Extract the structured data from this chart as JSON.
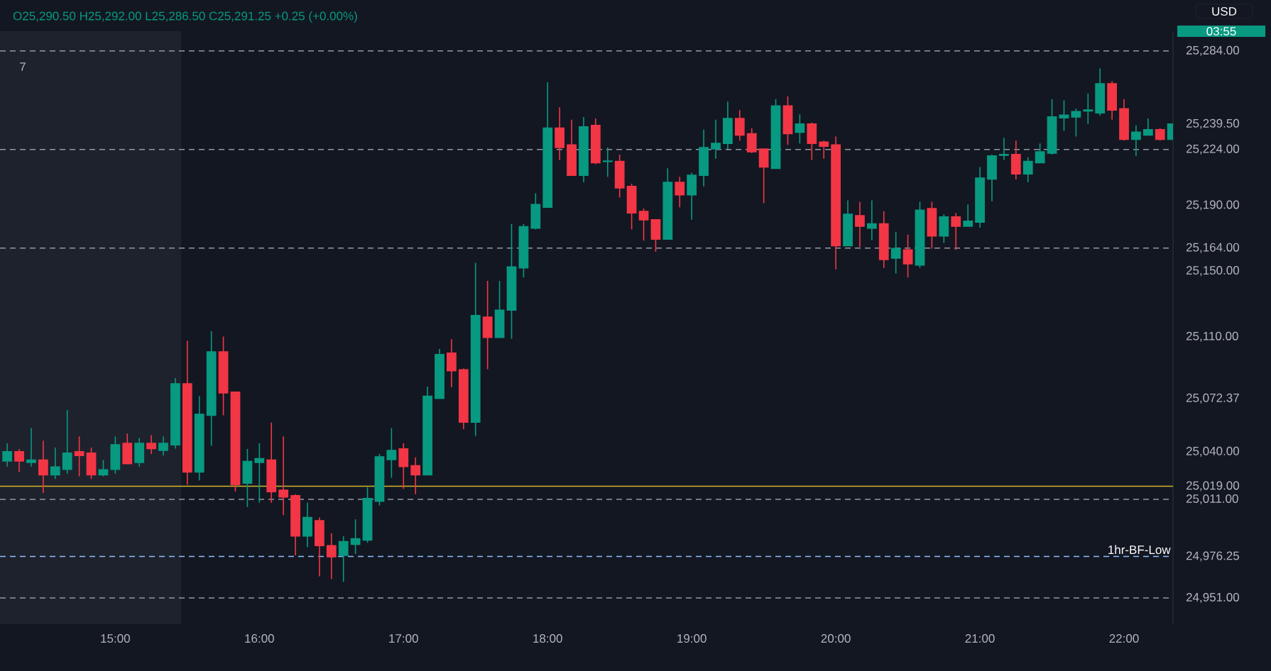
{
  "chart_data": {
    "type": "candlestick",
    "title": "O25,290.50 H25,292.00 L25,286.50 C25,291.25 +0.25 (+0.00%)",
    "annotations": [
      "7",
      "USD",
      "03:55"
    ],
    "x": [
      14.25,
      14.3333,
      14.4167,
      14.5,
      14.5833,
      14.6667,
      14.75,
      14.8333,
      14.9167,
      15,
      15.0833,
      15.1667,
      15.25,
      15.3333,
      15.4167,
      15.5,
      15.5833,
      15.6667,
      15.75,
      15.8333,
      15.9167,
      16,
      16.0833,
      16.1667,
      16.25,
      16.3333,
      16.4167,
      16.5,
      16.5833,
      16.6667,
      16.75,
      16.8333,
      16.9167,
      17,
      17.0833,
      17.1667,
      17.25,
      17.3333,
      17.4167,
      17.5,
      17.5833,
      17.6667,
      17.75,
      17.8333,
      17.9167,
      18,
      18.0833,
      18.1667,
      18.25,
      18.3333,
      18.4167,
      18.5,
      18.5833,
      18.6667,
      18.75,
      18.8333,
      18.9167,
      19,
      19.0833,
      19.1667,
      19.25,
      19.3333,
      19.4167,
      19.5,
      19.5833,
      19.6667,
      19.75,
      19.8333,
      19.9167,
      20,
      20.0833,
      20.1667,
      20.25,
      20.3333,
      20.4167,
      20.5,
      20.5833,
      20.6667,
      20.75,
      20.8333,
      20.9167,
      21,
      21.0833,
      21.1667,
      21.25,
      21.3333,
      21.4167,
      21.5,
      21.5833,
      21.6667,
      21.75,
      21.8333,
      21.9167,
      22,
      22.0833,
      22.1667,
      22.25,
      22.3333
    ],
    "ohlc": [
      [
        25034.3,
        25045.1,
        25031.0,
        25040.0
      ],
      [
        25040.0,
        25041.7,
        25027.6,
        25034.3
      ],
      [
        25033.5,
        25054.4,
        25031.0,
        25034.9
      ],
      [
        25034.9,
        25046.7,
        25014.9,
        25025.9
      ],
      [
        25025.9,
        25042.5,
        25023.4,
        25030.7
      ],
      [
        25029.3,
        25065.3,
        25026.7,
        25039.1
      ],
      [
        25040.0,
        25049.3,
        25025.0,
        25037.7
      ],
      [
        25039.1,
        25042.5,
        25023.4,
        25025.9
      ],
      [
        25025.9,
        25034.9,
        25025.0,
        25029.0
      ],
      [
        25029.3,
        25049.3,
        25026.7,
        25044.2
      ],
      [
        25045.1,
        25051.0,
        25032.7,
        25032.7
      ],
      [
        25033.5,
        25048.4,
        25031.0,
        25045.1
      ],
      [
        25045.1,
        25050.1,
        25038.6,
        25041.9
      ],
      [
        25040.8,
        25049.3,
        25037.7,
        25045.1
      ],
      [
        25044.2,
        25084.8,
        25041.9,
        25081.4
      ],
      [
        25081.4,
        25107.6,
        25020.0,
        25027.6
      ],
      [
        25027.6,
        25073.8,
        25022.5,
        25062.8
      ],
      [
        25062.2,
        25113.5,
        25043.6,
        25100.8
      ],
      [
        25100.8,
        25110.1,
        25062.2,
        25075.8
      ],
      [
        25076.3,
        25076.3,
        25015.7,
        25020.0
      ],
      [
        25020.8,
        25041.7,
        25006.4,
        25034.1
      ],
      [
        25033.5,
        25045.1,
        25009.0,
        25035.8
      ],
      [
        25034.9,
        25057.7,
        25009.0,
        25015.7
      ],
      [
        25016.6,
        25049.3,
        25001.4,
        25012.4
      ],
      [
        25013.2,
        25014.1,
        24976.9,
        24988.7
      ],
      [
        24988.7,
        25009.0,
        24981.9,
        25000.0
      ],
      [
        24998.0,
        25000.0,
        24964.2,
        24982.8
      ],
      [
        24982.8,
        24990.4,
        24962.5,
        24976.0
      ],
      [
        24976.9,
        24988.7,
        24960.8,
        24985.3
      ],
      [
        24983.6,
        24998.8,
        24977.7,
        24987.0
      ],
      [
        24986.2,
        25018.3,
        24984.5,
        25011.5
      ],
      [
        25009.8,
        25038.6,
        25007.3,
        25036.9
      ],
      [
        25035.2,
        25054.4,
        25024.2,
        25040.8
      ],
      [
        25041.7,
        25045.1,
        25017.4,
        25031.0
      ],
      [
        25031.5,
        25036.6,
        25014.1,
        25025.9
      ],
      [
        25025.9,
        25079.7,
        25025.9,
        25073.8
      ],
      [
        25072.4,
        25102.6,
        25072.4,
        25099.2
      ],
      [
        25100.0,
        25108.5,
        25079.2,
        25089.3
      ],
      [
        25089.9,
        25090.7,
        25053.8,
        25058.0
      ],
      [
        25058.0,
        25155.0,
        25049.6,
        25122.9
      ],
      [
        25122.0,
        25144.0,
        25090.2,
        25109.6
      ],
      [
        25109.6,
        25144.0,
        25109.6,
        25126.2
      ],
      [
        25126.2,
        25178.7,
        25108.8,
        25152.5
      ],
      [
        25151.9,
        25178.7,
        25146.0,
        25177.0
      ],
      [
        25176.1,
        25197.3,
        25175.3,
        25190.5
      ],
      [
        25188.8,
        25264.9,
        25188.8,
        25237.0
      ],
      [
        25237.0,
        25249.7,
        25217.6,
        25225.2
      ],
      [
        25226.8,
        25242.1,
        25208.3,
        25208.3
      ],
      [
        25208.3,
        25243.8,
        25204.0,
        25237.8
      ],
      [
        25238.7,
        25242.9,
        25215.0,
        25215.9
      ],
      [
        25216.7,
        25225.2,
        25207.4,
        25216.9
      ],
      [
        25216.7,
        25220.9,
        25194.7,
        25200.6
      ],
      [
        25201.5,
        25203.2,
        25175.3,
        25185.4
      ],
      [
        25186.3,
        25188.0,
        25168.5,
        25181.2
      ],
      [
        25181.2,
        25181.2,
        25161.7,
        25169.4
      ],
      [
        25169.4,
        25212.5,
        25169.4,
        25204.0
      ],
      [
        25204.0,
        25207.4,
        25188.8,
        25196.4
      ],
      [
        25196.4,
        25209.9,
        25181.2,
        25208.3
      ],
      [
        25208.3,
        25236.1,
        25201.5,
        25225.2
      ],
      [
        25224.3,
        25242.1,
        25218.4,
        25227.7
      ],
      [
        25227.7,
        25253.1,
        25224.3,
        25242.9
      ],
      [
        25242.9,
        25248.0,
        25229.4,
        25232.8
      ],
      [
        25233.6,
        25237.0,
        25221.8,
        25222.6
      ],
      [
        25224.3,
        25224.3,
        25191.3,
        25213.3
      ],
      [
        25212.5,
        25254.7,
        25212.5,
        25250.5
      ],
      [
        25250.5,
        25256.4,
        25226.8,
        25233.6
      ],
      [
        25234.5,
        25245.4,
        25227.7,
        25239.5
      ],
      [
        25239.5,
        25240.4,
        25217.6,
        25227.7
      ],
      [
        25228.5,
        25229.4,
        25218.4,
        25226.0
      ],
      [
        25226.8,
        25231.9,
        25151.0,
        25165.4
      ],
      [
        25165.4,
        25193.0,
        25165.4,
        25184.6
      ],
      [
        25183.7,
        25192.2,
        25164.6,
        25177.3
      ],
      [
        25176.1,
        25193.0,
        25168.8,
        25178.7
      ],
      [
        25178.7,
        25186.3,
        25151.9,
        25157.0
      ],
      [
        25157.8,
        25173.9,
        25148.5,
        25163.7
      ],
      [
        25162.9,
        25172.2,
        25146.0,
        25154.4
      ],
      [
        25153.6,
        25192.2,
        25151.9,
        25187.1
      ],
      [
        25188.0,
        25192.2,
        25163.7,
        25171.3
      ],
      [
        25171.3,
        25184.6,
        25167.1,
        25182.9
      ],
      [
        25182.9,
        25185.4,
        25162.9,
        25177.3
      ],
      [
        25177.3,
        25190.5,
        25177.3,
        25180.4
      ],
      [
        25179.8,
        25213.3,
        25176.4,
        25206.6
      ],
      [
        25206.0,
        25220.9,
        25192.5,
        25220.1
      ],
      [
        25220.4,
        25231.1,
        25217.6,
        25220.9
      ],
      [
        25220.9,
        25229.4,
        25205.7,
        25209.1
      ],
      [
        25209.1,
        25219.2,
        25204.0,
        25216.7
      ],
      [
        25215.9,
        25227.7,
        25215.9,
        25222.6
      ],
      [
        25221.8,
        25254.7,
        25220.9,
        25243.8
      ],
      [
        25243.2,
        25253.9,
        25235.3,
        25244.9
      ],
      [
        25243.8,
        25248.8,
        25231.9,
        25247.1
      ],
      [
        25247.4,
        25258.1,
        25239.5,
        25248.0
      ],
      [
        25246.3,
        25273.3,
        25244.6,
        25264.0
      ],
      [
        25264.0,
        25265.7,
        25242.1,
        25248.0
      ],
      [
        25248.8,
        25254.7,
        25229.4,
        25230.2
      ],
      [
        25230.2,
        25238.7,
        25220.1,
        25234.5
      ],
      [
        25232.8,
        25242.9,
        25232.8,
        25236.1
      ],
      [
        25236.1,
        25237.0,
        25229.4,
        25230.2
      ],
      [
        25230.2,
        25239.5,
        25230.2,
        25239.5
      ]
    ],
    "colors": [
      "#089981",
      "#f23645",
      "#089981",
      "#f23645",
      "#089981",
      "#089981",
      "#f23645",
      "#f23645",
      "#089981",
      "#089981",
      "#f23645",
      "#089981",
      "#f23645",
      "#089981",
      "#089981",
      "#f23645",
      "#089981",
      "#089981",
      "#f23645",
      "#f23645",
      "#089981",
      "#089981",
      "#f23645",
      "#f23645",
      "#f23645",
      "#089981",
      "#f23645",
      "#f23645",
      "#089981",
      "#089981",
      "#089981",
      "#089981",
      "#089981",
      "#f23645",
      "#f23645",
      "#089981",
      "#089981",
      "#f23645",
      "#f23645",
      "#089981",
      "#f23645",
      "#089981",
      "#089981",
      "#089981",
      "#089981",
      "#089981",
      "#f23645",
      "#f23645",
      "#089981",
      "#f23645",
      "#089981",
      "#f23645",
      "#f23645",
      "#f23645",
      "#f23645",
      "#089981",
      "#f23645",
      "#089981",
      "#089981",
      "#089981",
      "#089981",
      "#f23645",
      "#f23645",
      "#f23645",
      "#089981",
      "#f23645",
      "#089981",
      "#f23645",
      "#f23645",
      "#f23645",
      "#089981",
      "#f23645",
      "#089981",
      "#f23645",
      "#089981",
      "#f23645",
      "#089981",
      "#f23645",
      "#089981",
      "#f23645",
      "#089981",
      "#089981",
      "#089981",
      "#089981",
      "#f23645",
      "#089981",
      "#089981",
      "#089981",
      "#089981",
      "#089981",
      "#089981",
      "#089981",
      "#f23645",
      "#f23645",
      "#089981",
      "#089981",
      "#f23645",
      "#089981"
    ],
    "xlim": [
      14.2,
      22.34
    ],
    "xticks": [
      {
        "value": 15,
        "label": "15:00"
      },
      {
        "value": 16,
        "label": "16:00"
      },
      {
        "value": 17,
        "label": "17:00"
      },
      {
        "value": 18,
        "label": "18:00"
      },
      {
        "value": 19,
        "label": "19:00"
      },
      {
        "value": 20,
        "label": "20:00"
      },
      {
        "value": 21,
        "label": "21:00"
      },
      {
        "value": 22,
        "label": "22:00"
      }
    ],
    "ylim": [
      24935,
      25296
    ],
    "yticks": [
      {
        "value": 24951,
        "label": "24,951.00"
      },
      {
        "value": 24976.25,
        "label": "24,976.25"
      },
      {
        "value": 25011,
        "label": "25,011.00"
      },
      {
        "value": 25019,
        "label": "25,019.00"
      },
      {
        "value": 25040,
        "label": "25,040.00"
      },
      {
        "value": 25072.37,
        "label": "25,072.37"
      },
      {
        "value": 25110,
        "label": "25,110.00"
      },
      {
        "value": 25150,
        "label": "25,150.00"
      },
      {
        "value": 25164,
        "label": "25,164.00"
      },
      {
        "value": 25190,
        "label": "25,190.00"
      },
      {
        "value": 25224,
        "label": "25,224.00"
      },
      {
        "value": 25239.5,
        "label": "25,239.50"
      },
      {
        "value": 25284,
        "label": "25,284.00"
      }
    ],
    "ref_lines": [
      {
        "axis": "y",
        "value": 25284,
        "color": "#9598a1",
        "line_style": "dashed"
      },
      {
        "axis": "y",
        "value": 25224,
        "color": "#9598a1",
        "line_style": "dashed"
      },
      {
        "axis": "y",
        "value": 25164,
        "color": "#9598a1",
        "line_style": "dashed"
      },
      {
        "axis": "y",
        "value": 25011,
        "color": "#9598a1",
        "line_style": "dashed"
      },
      {
        "axis": "y",
        "value": 24951,
        "color": "#9598a1",
        "line_style": "dashed"
      },
      {
        "axis": "y",
        "value": 25019,
        "color": "#d4b82a",
        "line_style": "solid"
      },
      {
        "axis": "y",
        "value": 24976.25,
        "label": "1hr-BF-Low",
        "color": "#90bff9",
        "line_style": "dashed"
      }
    ],
    "bands": [
      {
        "axis": "x",
        "from": 14.2,
        "to": 15.458,
        "color": "#1e222d"
      }
    ]
  }
}
